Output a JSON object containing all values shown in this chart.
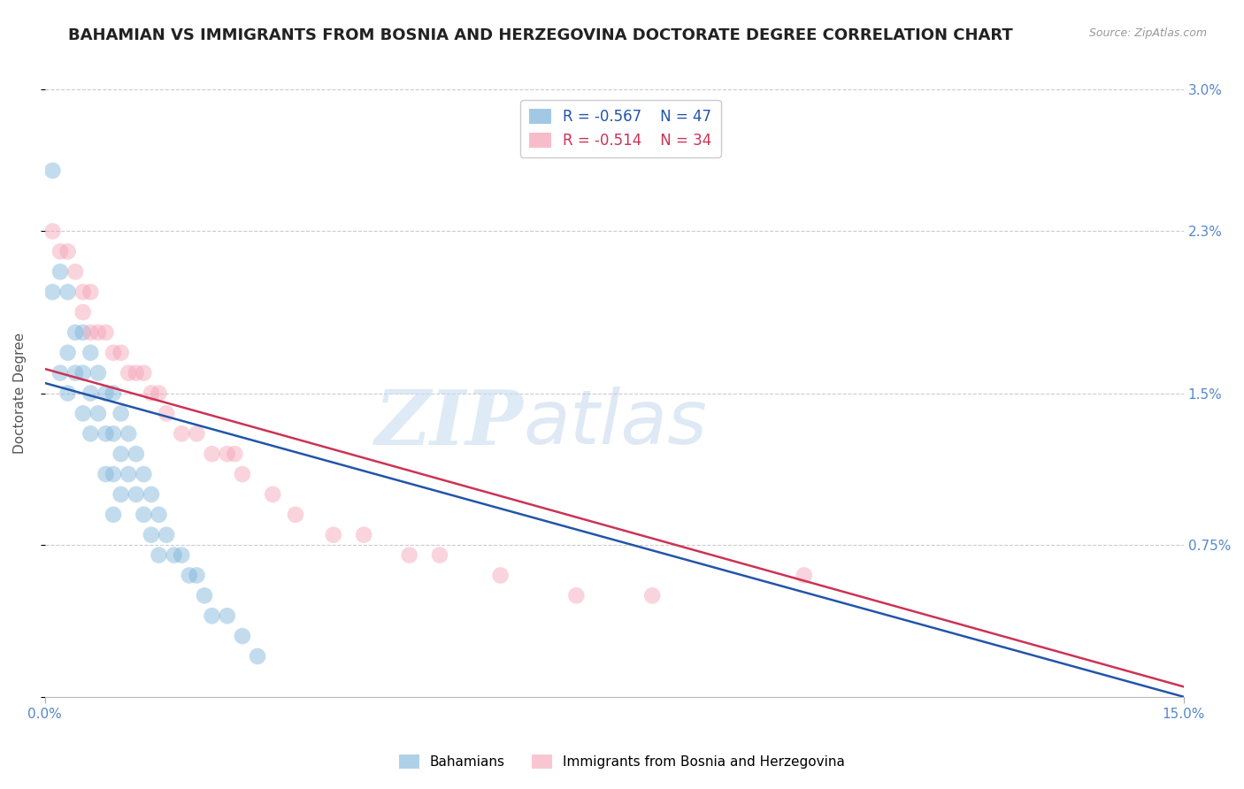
{
  "title": "BAHAMIAN VS IMMIGRANTS FROM BOSNIA AND HERZEGOVINA DOCTORATE DEGREE CORRELATION CHART",
  "source": "Source: ZipAtlas.com",
  "ylabel": "Doctorate Degree",
  "xlim": [
    0,
    0.15
  ],
  "ylim": [
    0,
    0.03
  ],
  "yticks": [
    0,
    0.0075,
    0.015,
    0.023,
    0.03
  ],
  "ytick_labels": [
    "",
    "0.75%",
    "1.5%",
    "2.3%",
    "3.0%"
  ],
  "xticks": [
    0,
    0.15
  ],
  "xtick_labels": [
    "0.0%",
    "15.0%"
  ],
  "legend_r_blue": "R = -0.567",
  "legend_n_blue": "N = 47",
  "legend_r_pink": "R = -0.514",
  "legend_n_pink": "N = 34",
  "legend_label_blue": "Bahamians",
  "legend_label_pink": "Immigrants from Bosnia and Herzegovina",
  "blue_color": "#7ab3d9",
  "pink_color": "#f4a0b4",
  "blue_line_color": "#2255aa",
  "pink_line_color": "#cc3355",
  "watermark_zip": "ZIP",
  "watermark_atlas": "atlas",
  "blue_scatter_x": [
    0.001,
    0.001,
    0.002,
    0.002,
    0.003,
    0.003,
    0.003,
    0.004,
    0.004,
    0.005,
    0.005,
    0.005,
    0.006,
    0.006,
    0.006,
    0.007,
    0.007,
    0.008,
    0.008,
    0.008,
    0.009,
    0.009,
    0.009,
    0.009,
    0.01,
    0.01,
    0.01,
    0.011,
    0.011,
    0.012,
    0.012,
    0.013,
    0.013,
    0.014,
    0.014,
    0.015,
    0.015,
    0.016,
    0.017,
    0.018,
    0.019,
    0.02,
    0.021,
    0.022,
    0.024,
    0.026,
    0.028
  ],
  "blue_scatter_y": [
    0.026,
    0.02,
    0.021,
    0.016,
    0.02,
    0.017,
    0.015,
    0.018,
    0.016,
    0.018,
    0.016,
    0.014,
    0.017,
    0.015,
    0.013,
    0.016,
    0.014,
    0.015,
    0.013,
    0.011,
    0.015,
    0.013,
    0.011,
    0.009,
    0.014,
    0.012,
    0.01,
    0.013,
    0.011,
    0.012,
    0.01,
    0.011,
    0.009,
    0.01,
    0.008,
    0.009,
    0.007,
    0.008,
    0.007,
    0.007,
    0.006,
    0.006,
    0.005,
    0.004,
    0.004,
    0.003,
    0.002
  ],
  "pink_scatter_x": [
    0.001,
    0.002,
    0.003,
    0.004,
    0.005,
    0.005,
    0.006,
    0.006,
    0.007,
    0.008,
    0.009,
    0.01,
    0.011,
    0.012,
    0.013,
    0.014,
    0.015,
    0.016,
    0.018,
    0.02,
    0.022,
    0.024,
    0.025,
    0.026,
    0.03,
    0.033,
    0.038,
    0.042,
    0.048,
    0.052,
    0.06,
    0.07,
    0.08,
    0.1
  ],
  "pink_scatter_y": [
    0.023,
    0.022,
    0.022,
    0.021,
    0.02,
    0.019,
    0.02,
    0.018,
    0.018,
    0.018,
    0.017,
    0.017,
    0.016,
    0.016,
    0.016,
    0.015,
    0.015,
    0.014,
    0.013,
    0.013,
    0.012,
    0.012,
    0.012,
    0.011,
    0.01,
    0.009,
    0.008,
    0.008,
    0.007,
    0.007,
    0.006,
    0.005,
    0.005,
    0.006
  ],
  "blue_line_x": [
    0.0,
    0.15
  ],
  "blue_line_y": [
    0.0155,
    0.0
  ],
  "pink_line_x": [
    0.0,
    0.15
  ],
  "pink_line_y": [
    0.0162,
    0.0005
  ],
  "dot_size": 180,
  "dot_alpha": 0.45,
  "grid_color": "#cccccc",
  "background_color": "#ffffff",
  "title_color": "#222222",
  "axis_label_color": "#555555",
  "tick_label_color": "#5588cc",
  "title_fontsize": 13,
  "axis_label_fontsize": 11,
  "tick_fontsize": 11
}
